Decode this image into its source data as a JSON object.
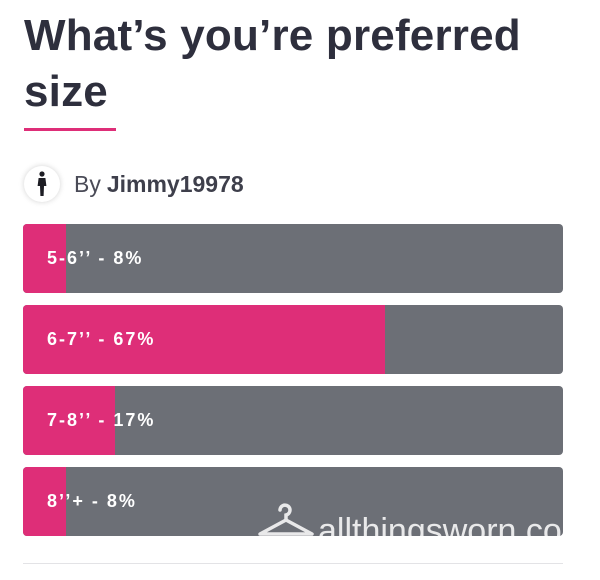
{
  "post": {
    "title": "What’s you’re preferred size",
    "by_label": "By",
    "author": "Jimmy19978",
    "avatar_icon": "person-icon"
  },
  "poll": {
    "options": [
      {
        "label": "5-6’’ - 8%",
        "percent": 8
      },
      {
        "label": "6-7’’ - 67%",
        "percent": 67
      },
      {
        "label": "7-8’’ - 17%",
        "percent": 17
      },
      {
        "label": "8’’+ - 8%",
        "percent": 8
      }
    ]
  },
  "watermark": {
    "text": "allthingsworn.co",
    "icon": "hanger-icon"
  },
  "colors": {
    "accent": "#de2e78",
    "bar_track": "#6c6f76",
    "title": "#2e2f3d"
  }
}
